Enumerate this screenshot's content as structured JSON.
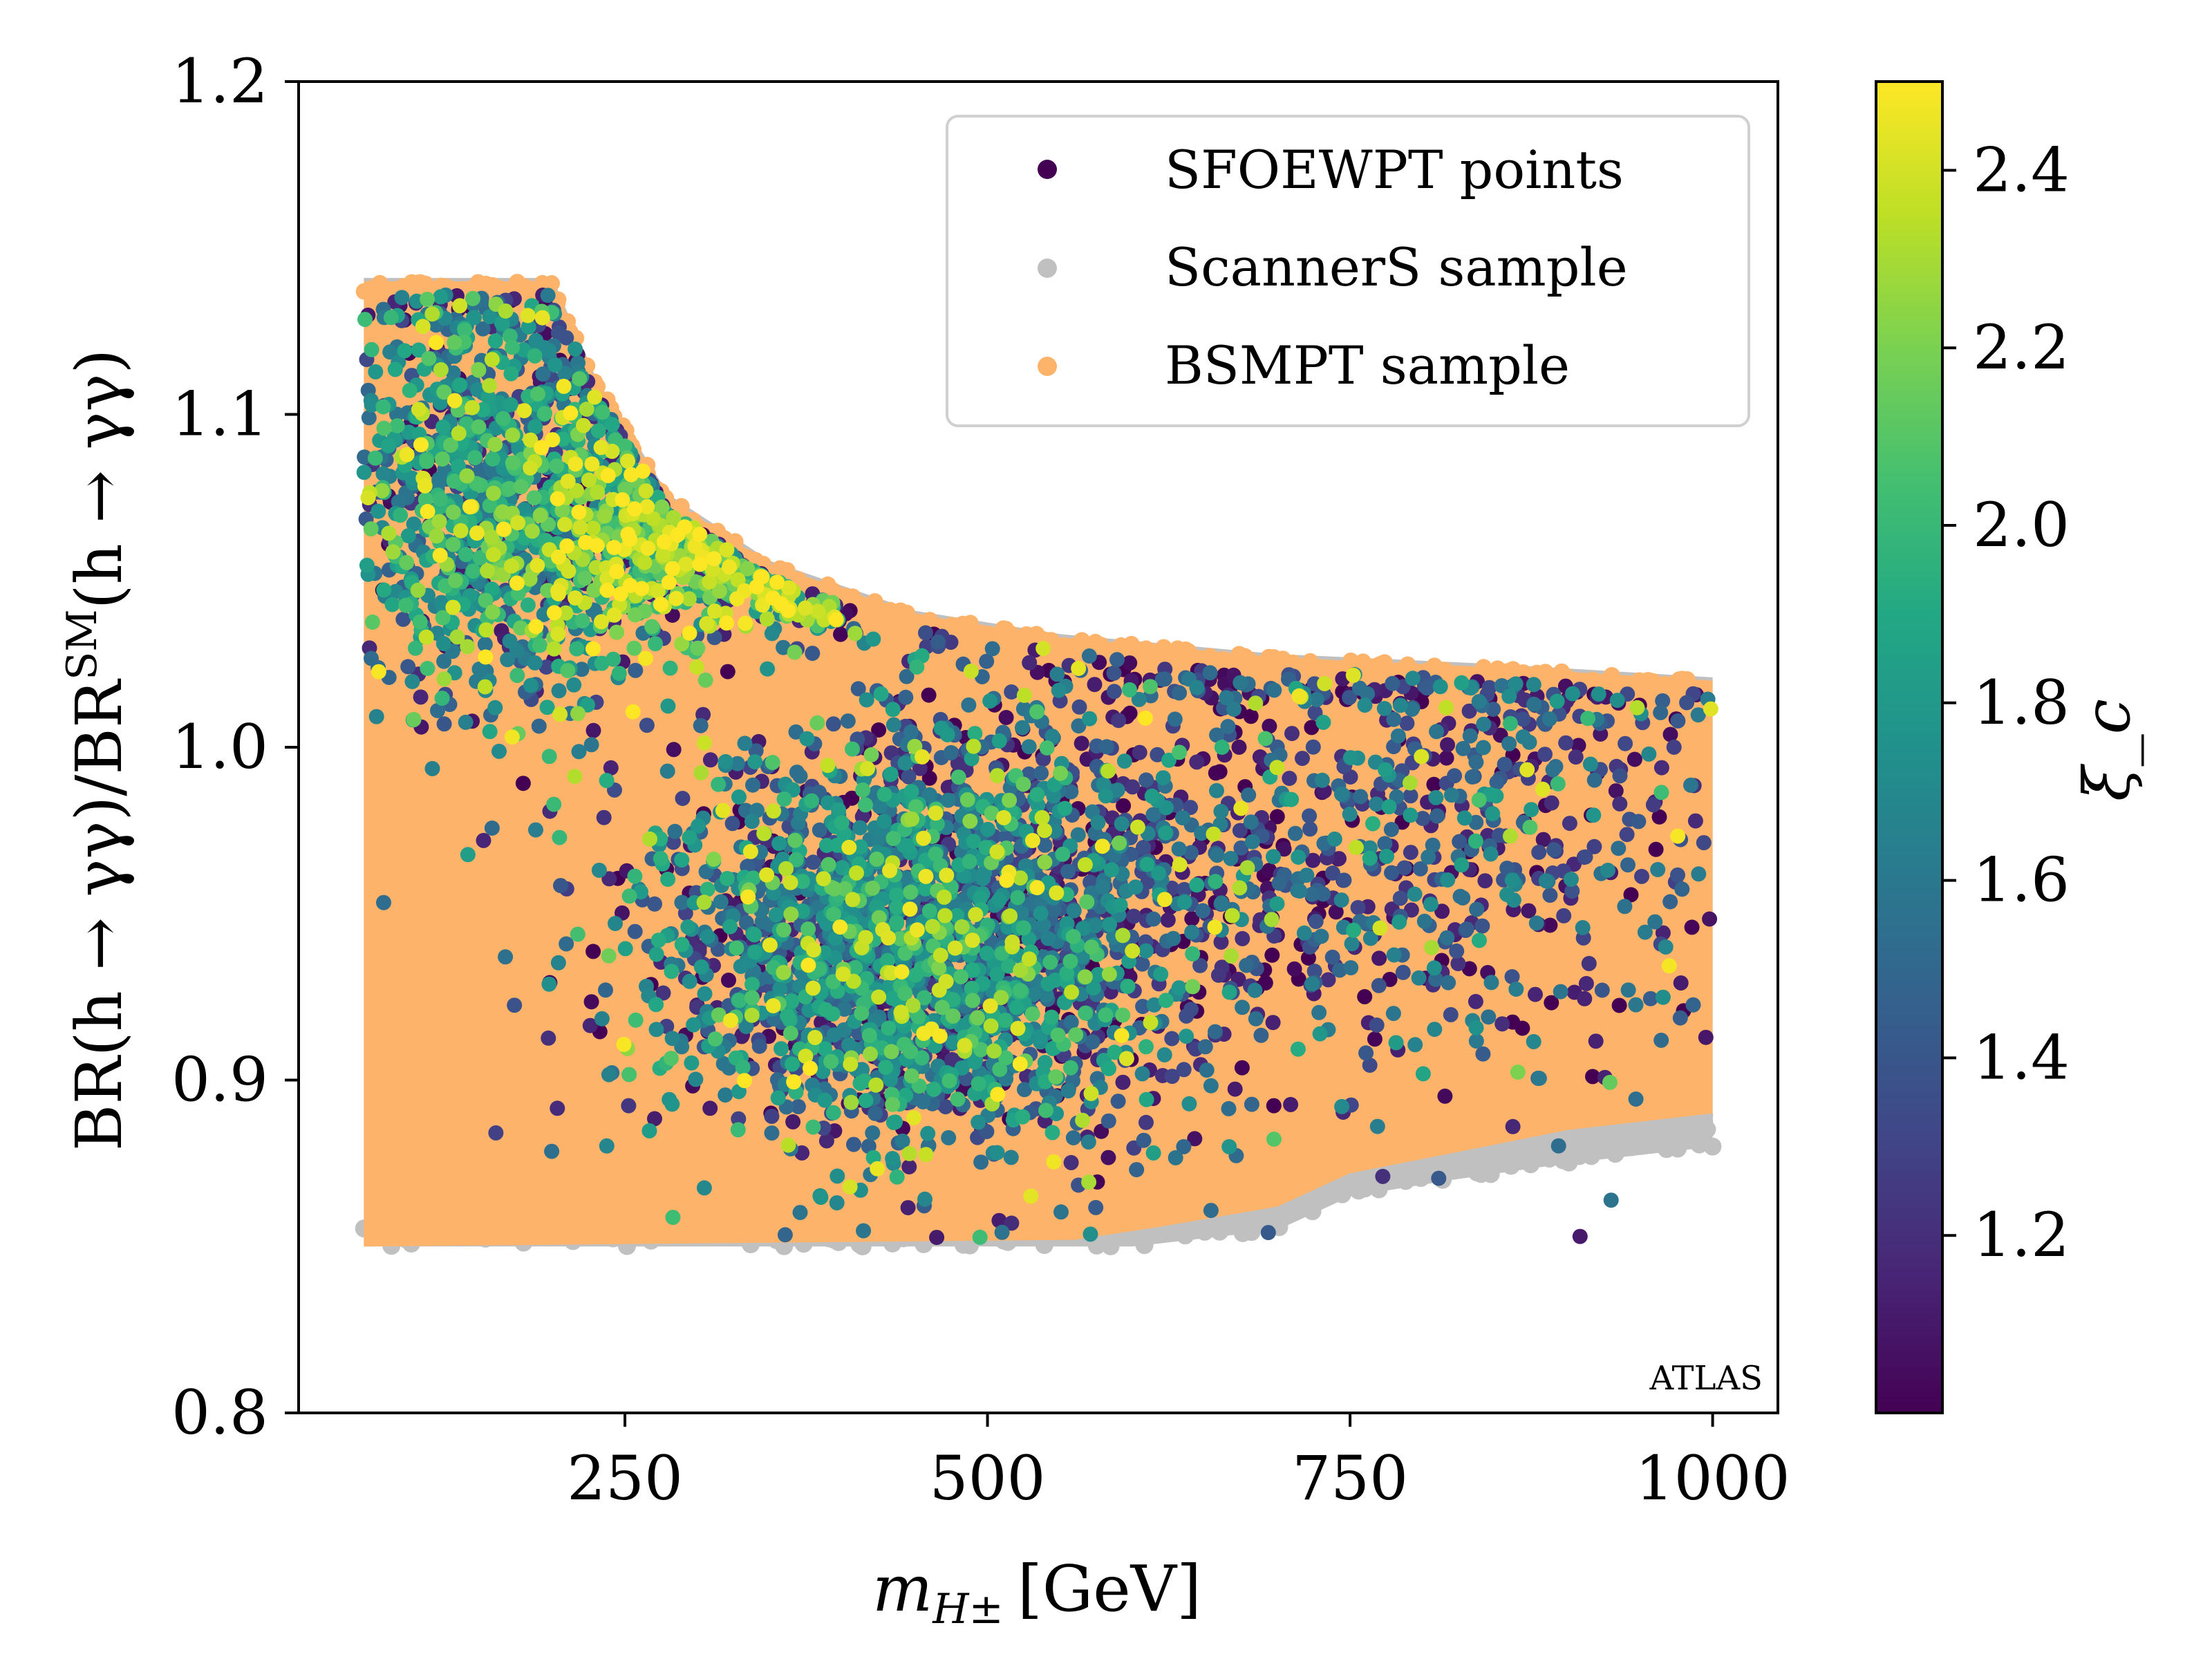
{
  "chart_data": {
    "type": "scatter",
    "title": "",
    "xlabel": "m_{H±} [GeV]",
    "xlabel_main": "m",
    "xlabel_sub": "H±",
    "xlabel_unit": "[GeV]",
    "ylabel": "BR(h → γγ)/BR^{SM}(h → γγ)",
    "ylabel_pre": "BR(h → γγ)/BR",
    "ylabel_sup": "SM",
    "ylabel_post": "(h → γγ)",
    "xlim": [
      25,
      1045
    ],
    "ylim": [
      0.8,
      1.2
    ],
    "xticks": [
      250,
      500,
      750,
      1000
    ],
    "xtick_labels": [
      "250",
      "500",
      "750",
      "1000"
    ],
    "yticks": [
      0.8,
      0.9,
      1.0,
      1.1,
      1.2
    ],
    "ytick_labels": [
      "0.8",
      "0.9",
      "1.0",
      "1.1",
      "1.2"
    ],
    "grid": false,
    "legend_position": "top-right",
    "annotation": "ATLAS",
    "series": [
      {
        "name": "BSMPT sample",
        "color": "#fdb46a",
        "description_regions": "filled region m from 70 to 1000 GeV, ratio from 0.85 up to an upper envelope",
        "upper_envelope": [
          [
            70,
            1.14
          ],
          [
            200,
            1.14
          ],
          [
            230,
            1.11
          ],
          [
            280,
            1.075
          ],
          [
            350,
            1.055
          ],
          [
            450,
            1.04
          ],
          [
            550,
            1.033
          ],
          [
            700,
            1.027
          ],
          [
            850,
            1.024
          ],
          [
            1000,
            1.02
          ]
        ],
        "lower_bound": 0.85
      },
      {
        "name": "ScannerS sample",
        "color": "#c0c0c0",
        "lower_envelope": [
          [
            70,
            0.85
          ],
          [
            600,
            0.85
          ],
          [
            700,
            0.855
          ],
          [
            750,
            0.865
          ],
          [
            820,
            0.87
          ],
          [
            900,
            0.875
          ],
          [
            1000,
            0.88
          ]
        ]
      },
      {
        "name": "SFOEWPT points",
        "color": "#440154",
        "colorscale_variable": "ξ_c",
        "clusters": [
          {
            "m": 160,
            "br": 1.08,
            "sm": 55,
            "sbr": 0.035,
            "xi_mean": 1.7
          },
          {
            "m": 270,
            "br": 1.06,
            "sm": 60,
            "sbr": 0.015,
            "xi_mean": 2.1
          },
          {
            "m": 450,
            "br": 0.94,
            "sm": 90,
            "sbr": 0.03,
            "xi_mean": 1.65
          },
          {
            "m": 600,
            "br": 0.97,
            "sm": 150,
            "sbr": 0.04,
            "xi_mean": 1.35
          },
          {
            "m": 850,
            "br": 0.98,
            "sm": 110,
            "sbr": 0.04,
            "xi_mean": 1.4
          }
        ]
      }
    ],
    "colorbar": {
      "label": "ξ_c",
      "min": 1.0,
      "max": 2.5,
      "ticks": [
        1.2,
        1.4,
        1.6,
        1.8,
        2.0,
        2.2,
        2.4
      ],
      "tick_labels": [
        "1.2",
        "1.4",
        "1.6",
        "1.8",
        "2.0",
        "2.2",
        "2.4"
      ],
      "colormap": [
        "#440154",
        "#482475",
        "#414487",
        "#355f8d",
        "#2a788e",
        "#21918c",
        "#22a884",
        "#44bf70",
        "#7ad151",
        "#bddf26",
        "#fde725"
      ]
    }
  }
}
